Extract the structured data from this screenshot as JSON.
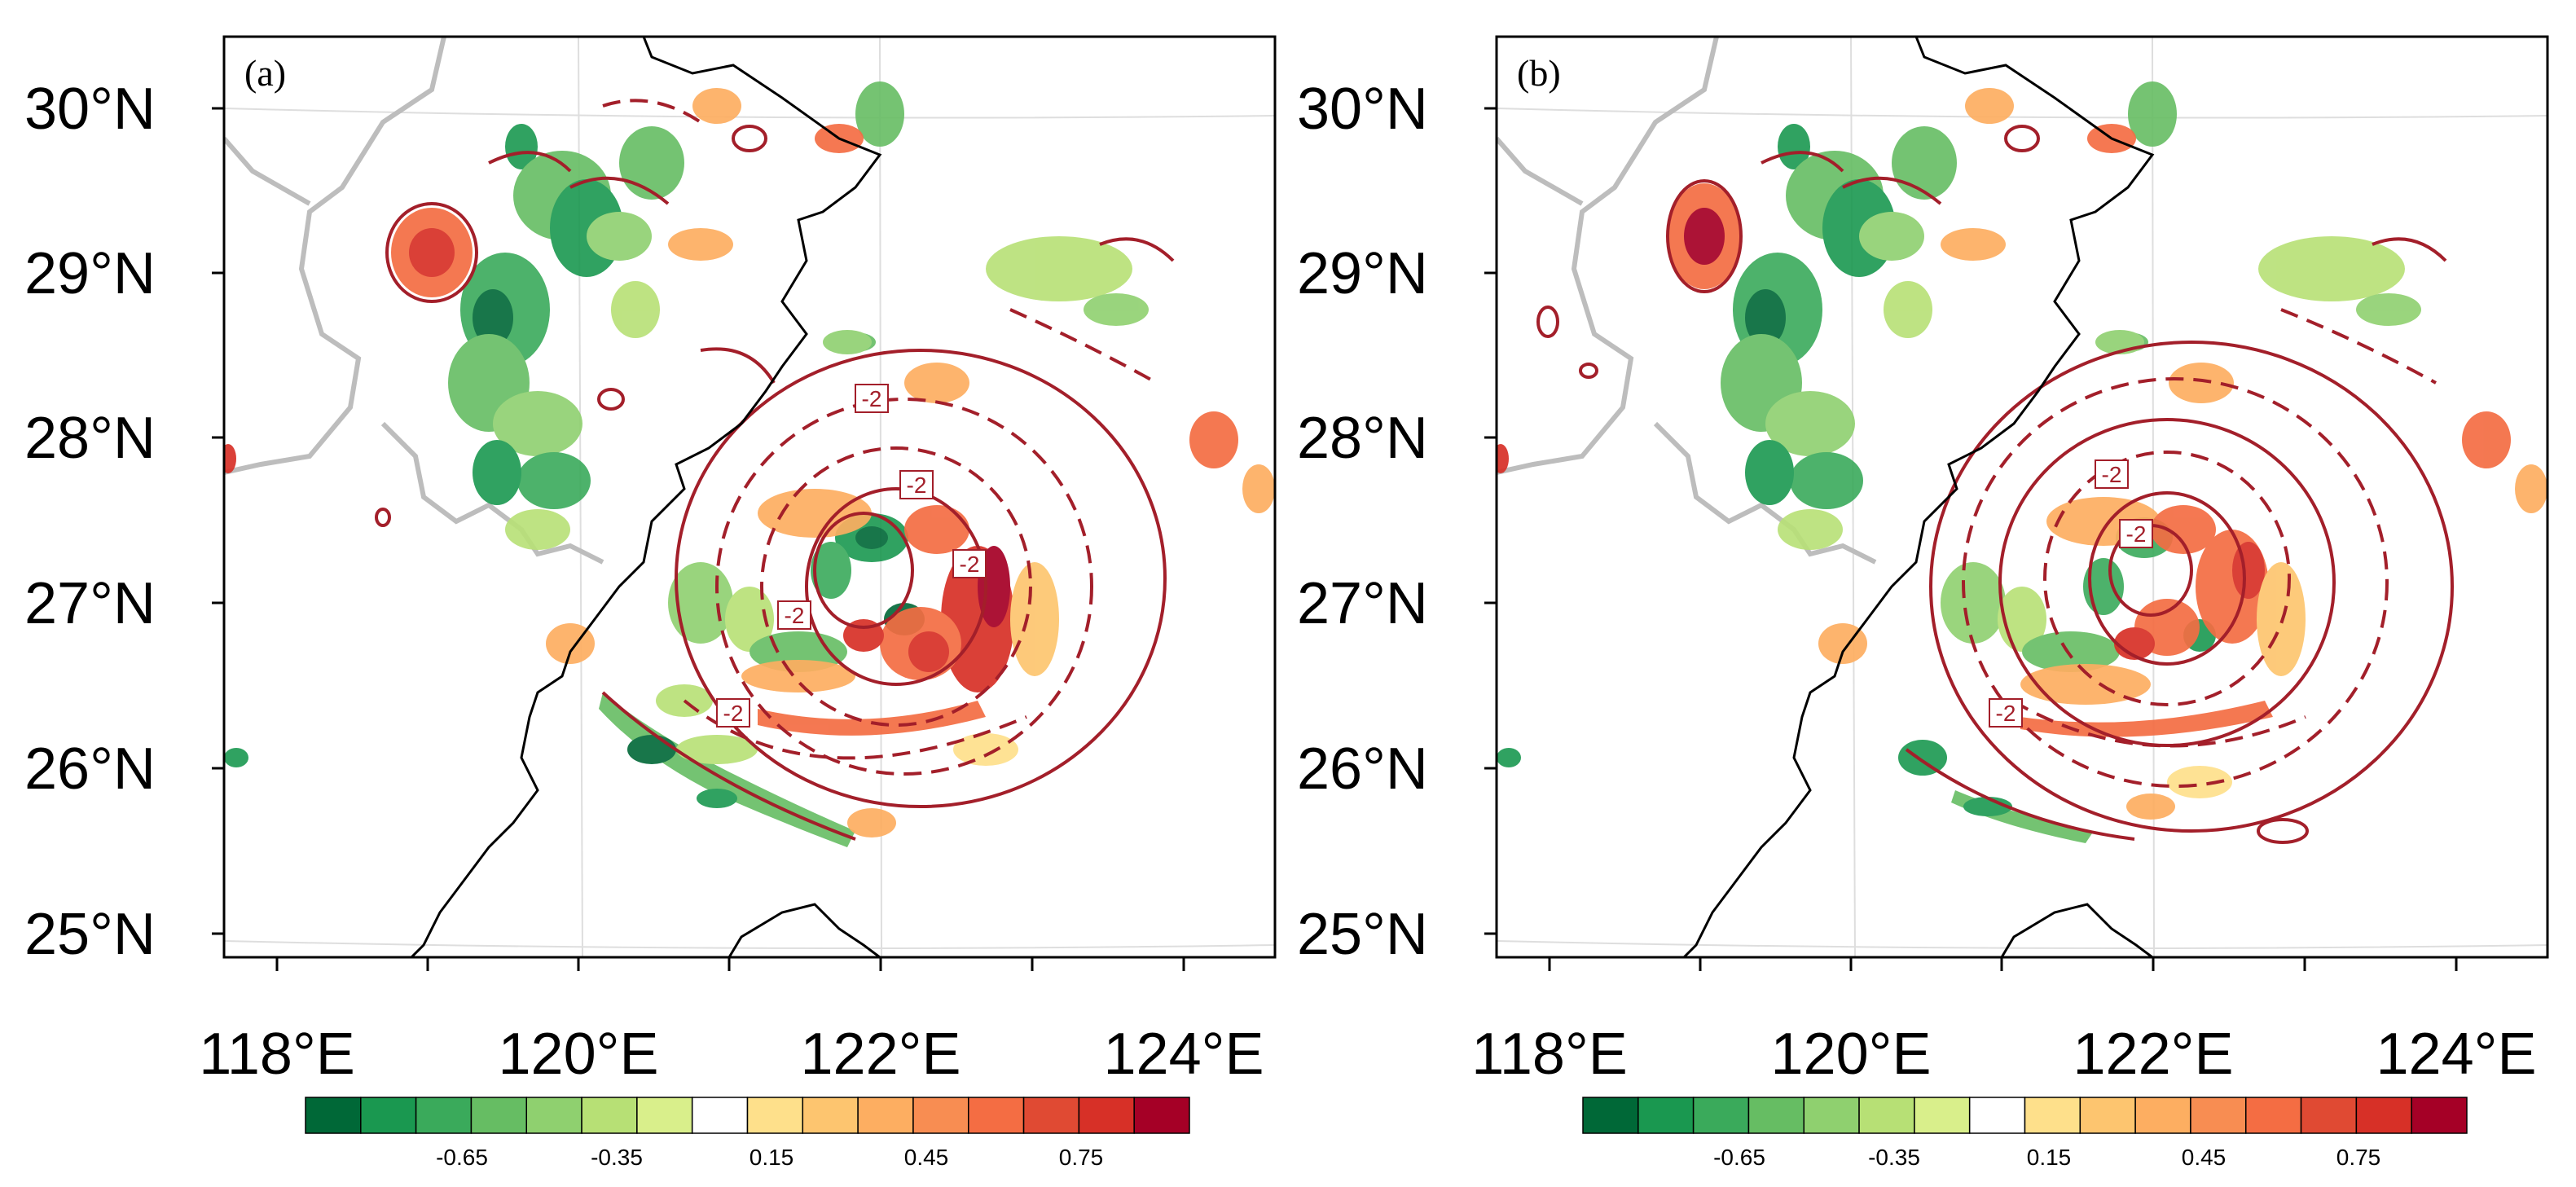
{
  "panels": [
    {
      "id": "a",
      "label": "(a)",
      "lat_labels": [
        "30°N",
        "29°N",
        "28°N",
        "27°N",
        "26°N",
        "25°N"
      ],
      "lon_labels": [
        "118°E",
        "120°E",
        "122°E",
        "124°E"
      ],
      "contour_labels": [
        "-2",
        "-2",
        "-2",
        "-2",
        "-2"
      ],
      "colorbar_labels": [
        "-0.65",
        "-0.35",
        "0.15",
        "0.45",
        "0.75"
      ]
    },
    {
      "id": "b",
      "label": "(b)",
      "lat_labels": [
        "30°N",
        "29°N",
        "28°N",
        "27°N",
        "26°N",
        "25°N"
      ],
      "lon_labels": [
        "118°E",
        "120°E",
        "122°E",
        "124°E"
      ],
      "contour_labels": [
        "-2",
        "-2",
        "-2"
      ],
      "colorbar_labels": [
        "-0.65",
        "-0.35",
        "0.15",
        "0.45",
        "0.75"
      ]
    }
  ],
  "colorbar_colors": [
    "#006837",
    "#1a9850",
    "#3aaa5b",
    "#66bd63",
    "#8fd06f",
    "#b7e075",
    "#d9ef8b",
    "#ffffff",
    "#fee08b",
    "#fdc56f",
    "#fdae61",
    "#f88d52",
    "#f46d43",
    "#e04a33",
    "#d73027",
    "#a50026"
  ],
  "colors": {
    "contour": "#a31f2a",
    "coast": "#000000",
    "border": "#bdbdbd"
  }
}
